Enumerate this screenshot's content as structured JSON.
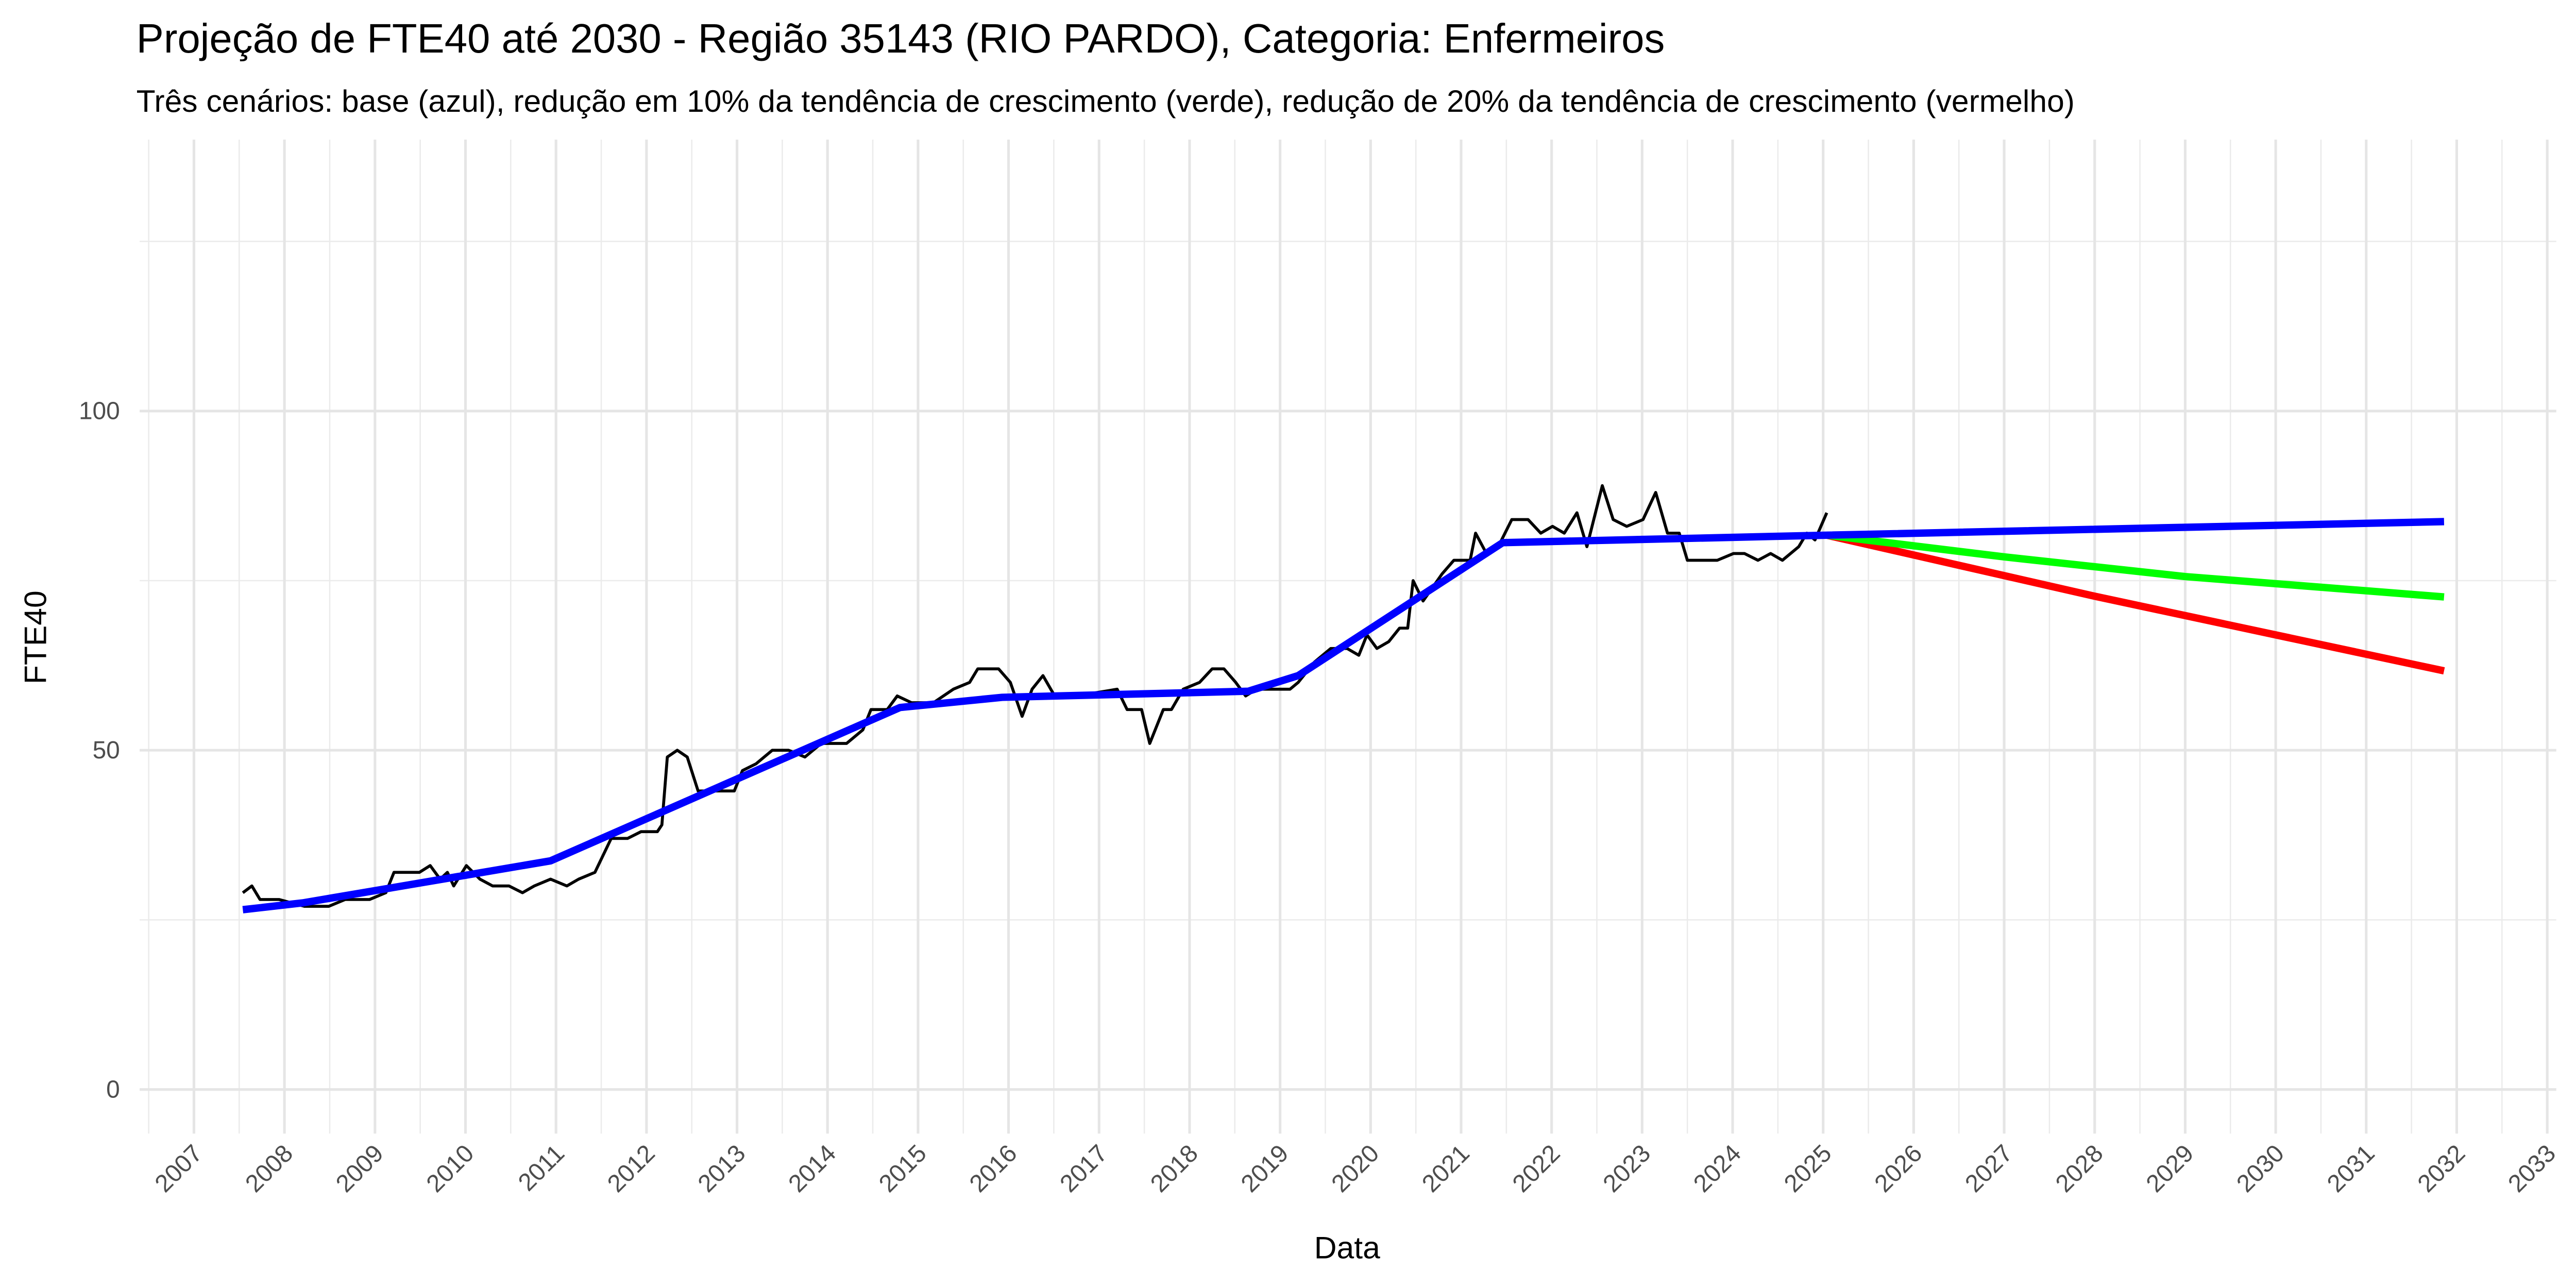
{
  "chart_data": {
    "type": "line",
    "title": "Projeção de FTE40 até 2030 - Região 35143 (RIO PARDO), Categoria: Enfermeiros",
    "subtitle": "Três cenários: base (azul), redução em 10% da tendência de crescimento (verde), redução de 20% da tendência de crescimento (vermelho)",
    "x_label": "Data",
    "y_label": "FTE40",
    "xlim": [
      2006.4,
      2033.1
    ],
    "xticks": [
      2007,
      2008,
      2009,
      2010,
      2011,
      2012,
      2013,
      2014,
      2015,
      2016,
      2017,
      2018,
      2019,
      2020,
      2021,
      2022,
      2023,
      2024,
      2025,
      2026,
      2027,
      2028,
      2029,
      2030,
      2031,
      2032,
      2033
    ],
    "ylim": [
      -6.5,
      140
    ],
    "yticks": [
      0,
      50,
      100
    ],
    "grid": true,
    "series": [
      {
        "color": "#000000",
        "x": [
          2007.54,
          2007.64,
          2007.73,
          2007.94,
          2008.22,
          2008.49,
          2008.67,
          2008.94,
          2009.12,
          2009.21,
          2009.49,
          2009.61,
          2009.72,
          2009.8,
          2009.87,
          2010.01,
          2010.16,
          2010.3,
          2010.48,
          2010.63,
          2010.76,
          2010.94,
          2011.12,
          2011.25,
          2011.43,
          2011.61,
          2011.79,
          2011.94,
          2012.12,
          2012.17,
          2012.23,
          2012.34,
          2012.45,
          2012.57,
          2012.84,
          2012.97,
          2013.06,
          2013.21,
          2013.39,
          2013.57,
          2013.75,
          2013.93,
          2014.21,
          2014.39,
          2014.48,
          2014.66,
          2014.77,
          2014.93,
          2015.17,
          2015.39,
          2015.57,
          2015.66,
          2015.89,
          2016.02,
          2016.15,
          2016.26,
          2016.38,
          2016.51,
          2016.75,
          2017.2,
          2017.31,
          2017.47,
          2017.56,
          2017.71,
          2017.8,
          2017.93,
          2018.11,
          2018.25,
          2018.38,
          2018.51,
          2018.62,
          2018.74,
          2019.11,
          2019.2,
          2019.38,
          2019.56,
          2019.74,
          2019.87,
          2019.96,
          2020.07,
          2020.2,
          2020.32,
          2020.41,
          2020.47,
          2020.58,
          2020.79,
          2020.92,
          2021.1,
          2021.16,
          2021.28,
          2021.41,
          2021.56,
          2021.74,
          2021.88,
          2022.01,
          2022.14,
          2022.28,
          2022.39,
          2022.56,
          2022.68,
          2022.83,
          2023.01,
          2023.15,
          2023.28,
          2023.41,
          2023.5,
          2023.64,
          2023.83,
          2024.01,
          2024.13,
          2024.28,
          2024.42,
          2024.55,
          2024.73,
          2024.82,
          2024.91,
          2025.04
        ],
        "values": [
          29,
          30,
          28,
          28,
          27,
          27,
          28,
          28,
          29,
          32,
          32,
          33,
          31,
          32,
          30,
          33,
          31,
          30,
          30,
          29,
          30,
          31,
          30,
          31,
          32,
          37,
          37,
          38,
          38,
          39,
          49,
          50,
          49,
          44,
          44,
          44,
          47,
          48,
          50,
          50,
          49,
          51,
          51,
          53,
          56,
          56,
          58,
          57,
          57,
          59,
          60,
          62,
          62,
          60,
          55,
          59,
          61,
          58,
          58,
          59,
          56,
          56,
          51,
          56,
          56,
          59,
          60,
          62,
          62,
          60,
          58,
          59,
          59,
          60,
          63,
          65,
          65,
          64,
          67,
          65,
          66,
          68,
          68,
          75,
          72,
          76,
          78,
          78,
          82,
          79,
          80,
          84,
          84,
          82,
          83,
          82,
          85,
          80,
          89,
          84,
          83,
          84,
          88,
          82,
          82,
          78,
          78,
          78,
          79,
          79,
          78,
          79,
          78,
          80,
          82,
          81,
          85
        ]
      },
      {
        "color": "#ff0000",
        "x": [
          2025.04,
          2028.0,
          2031.86
        ],
        "values": [
          81.7,
          72.7,
          61.7
        ]
      },
      {
        "color": "#00ff00",
        "x": [
          2025.04,
          2027.0,
          2029.0,
          2031.86
        ],
        "values": [
          81.7,
          78.5,
          75.6,
          72.6
        ]
      },
      {
        "color": "#0000ff",
        "x": [
          2007.54,
          2008.2,
          2010.94,
          2014.8,
          2015.93,
          2018.65,
          2019.2,
          2021.46,
          2025.04,
          2031.86
        ],
        "values": [
          26.5,
          27.5,
          33.7,
          56.3,
          57.8,
          58.7,
          61,
          80.6,
          81.7,
          83.7
        ]
      }
    ]
  }
}
